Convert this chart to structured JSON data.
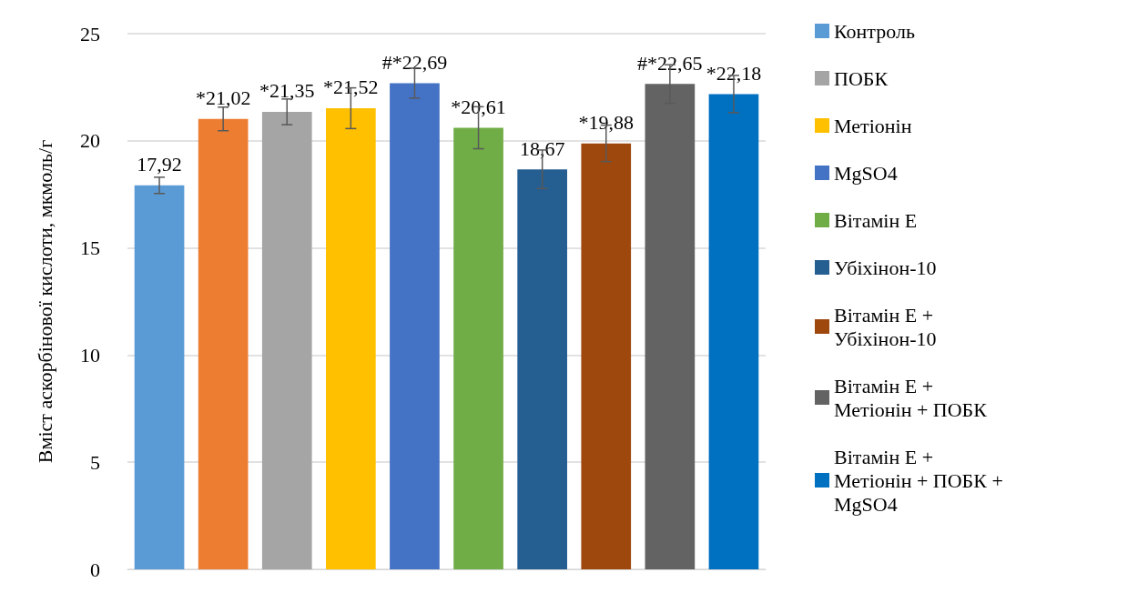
{
  "chart_data": {
    "type": "bar",
    "ylabel": "Вміст аскорбінової кислоти, мкмоль/г",
    "categories": [
      null,
      null,
      null,
      null,
      null,
      null,
      null,
      null,
      null,
      null
    ],
    "ylim": [
      0,
      25
    ],
    "yticks": [
      0,
      5,
      10,
      15,
      20,
      25
    ],
    "grid": "y",
    "legend": "right",
    "tick_labels": "y",
    "series": [
      {
        "name": "Контроль",
        "color": "#5b9bd5",
        "values": [
          17.92,
          null,
          null,
          null,
          null,
          null,
          null,
          null,
          null,
          null
        ],
        "errors": [
          0.38,
          null,
          null,
          null,
          null,
          null,
          null,
          null,
          null,
          null
        ],
        "value_labels": [
          "17,92",
          null,
          null,
          null,
          null,
          null,
          null,
          null,
          null,
          null
        ]
      },
      {
        "color": "#ed7d31",
        "values": [
          null,
          21.02,
          null,
          null,
          null,
          null,
          null,
          null,
          null,
          null
        ],
        "errors": [
          null,
          0.55,
          null,
          null,
          null,
          null,
          null,
          null,
          null,
          null
        ],
        "value_labels": [
          null,
          "*21,02",
          null,
          null,
          null,
          null,
          null,
          null,
          null,
          null
        ]
      },
      {
        "name": "ПОБК",
        "color": "#a5a5a5",
        "values": [
          null,
          null,
          21.35,
          null,
          null,
          null,
          null,
          null,
          null,
          null
        ],
        "errors": [
          null,
          null,
          0.6,
          null,
          null,
          null,
          null,
          null,
          null,
          null
        ],
        "value_labels": [
          null,
          null,
          "*21,35",
          null,
          null,
          null,
          null,
          null,
          null,
          null
        ]
      },
      {
        "name": "Метіонін",
        "color": "#ffc000",
        "values": [
          null,
          null,
          null,
          21.52,
          null,
          null,
          null,
          null,
          null,
          null
        ],
        "errors": [
          null,
          null,
          null,
          0.95,
          null,
          null,
          null,
          null,
          null,
          null
        ],
        "value_labels": [
          null,
          null,
          null,
          "*21,52",
          null,
          null,
          null,
          null,
          null,
          null
        ]
      },
      {
        "name": "MgSO4",
        "color": "#4472c4",
        "values": [
          null,
          null,
          null,
          null,
          22.69,
          null,
          null,
          null,
          null,
          null
        ],
        "errors": [
          null,
          null,
          null,
          null,
          0.7,
          null,
          null,
          null,
          null,
          null
        ],
        "value_labels": [
          null,
          null,
          null,
          null,
          "#*22,69",
          null,
          null,
          null,
          null,
          null
        ]
      },
      {
        "name": "Вітамін E",
        "color": "#70ad47",
        "values": [
          null,
          null,
          null,
          null,
          null,
          20.61,
          null,
          null,
          null,
          null
        ],
        "errors": [
          null,
          null,
          null,
          null,
          null,
          0.98,
          null,
          null,
          null,
          null
        ],
        "value_labels": [
          null,
          null,
          null,
          null,
          null,
          "*20,61",
          null,
          null,
          null,
          null
        ]
      },
      {
        "name": "Убіхінон-10",
        "color": "#255e91",
        "values": [
          null,
          null,
          null,
          null,
          null,
          null,
          18.67,
          null,
          null,
          null
        ],
        "errors": [
          null,
          null,
          null,
          null,
          null,
          null,
          0.9,
          null,
          null,
          null
        ],
        "value_labels": [
          null,
          null,
          null,
          null,
          null,
          null,
          "18,67",
          null,
          null,
          null
        ]
      },
      {
        "name": "Вітамін E + Убіхінон-10",
        "color": "#9e480e",
        "values": [
          null,
          null,
          null,
          null,
          null,
          null,
          null,
          19.88,
          null,
          null
        ],
        "errors": [
          null,
          null,
          null,
          null,
          null,
          null,
          null,
          0.85,
          null,
          null
        ],
        "value_labels": [
          null,
          null,
          null,
          null,
          null,
          null,
          null,
          "*19,88",
          null,
          null
        ]
      },
      {
        "name": "Вітамін E + Метіонін + ПОБК",
        "color": "#636363",
        "values": [
          null,
          null,
          null,
          null,
          null,
          null,
          null,
          null,
          22.65,
          null
        ],
        "errors": [
          null,
          null,
          null,
          null,
          null,
          null,
          null,
          null,
          0.9,
          null
        ],
        "value_labels": [
          null,
          null,
          null,
          null,
          null,
          null,
          null,
          null,
          "#*22,65",
          null
        ]
      },
      {
        "name": "Вітамін E + Метіонін + ПОБК + MgSO4",
        "color": "#0070c0",
        "values": [
          null,
          null,
          null,
          null,
          null,
          null,
          null,
          null,
          null,
          22.18
        ],
        "errors": [
          null,
          null,
          null,
          null,
          null,
          null,
          null,
          null,
          null,
          0.87
        ],
        "value_labels": [
          null,
          null,
          null,
          null,
          null,
          null,
          null,
          null,
          null,
          "*22,18"
        ]
      }
    ]
  }
}
